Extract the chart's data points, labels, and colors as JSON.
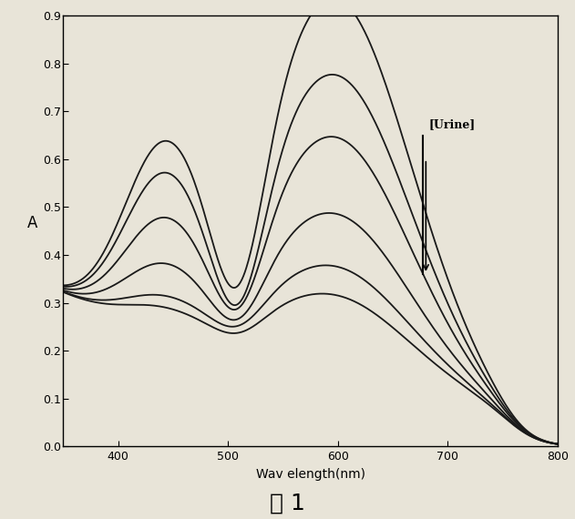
{
  "xlabel": "Wav elength(nm)",
  "ylabel": "A",
  "title_chinese": "图 1",
  "annotation_text": "[Urine]",
  "xlim": [
    350,
    800
  ],
  "ylim": [
    0.0,
    0.9
  ],
  "xticks": [
    400,
    500,
    600,
    700,
    800
  ],
  "yticks": [
    0.0,
    0.1,
    0.2,
    0.3,
    0.4,
    0.5,
    0.6,
    0.7,
    0.8,
    0.9
  ],
  "curve_color": "#1a1a1a",
  "background_color": "#e8e4d8",
  "figure_width": 6.31,
  "figure_height": 5.7,
  "dpi": 100,
  "curves": [
    {
      "p1": 0.65,
      "p2": 0.8,
      "trough": 0.3
    },
    {
      "p1": 0.59,
      "p2": 0.64,
      "trough": 0.295
    },
    {
      "p1": 0.5,
      "p2": 0.51,
      "trough": 0.29
    },
    {
      "p1": 0.41,
      "p2": 0.35,
      "trough": 0.285
    },
    {
      "p1": 0.34,
      "p2": 0.24,
      "trough": 0.275
    },
    {
      "p1": 0.315,
      "p2": 0.18,
      "trough": 0.27
    }
  ]
}
